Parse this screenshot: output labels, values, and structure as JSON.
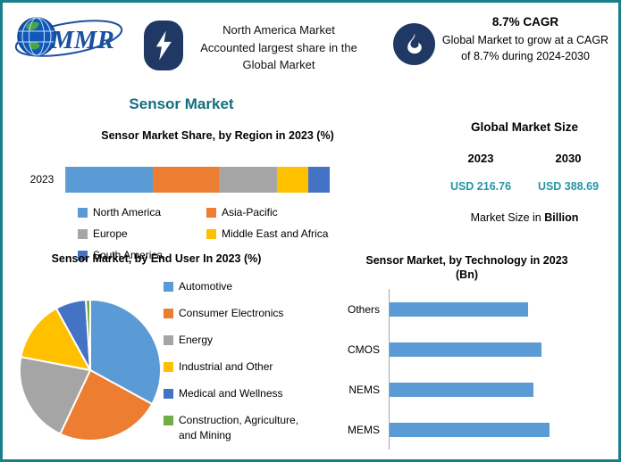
{
  "theme": {
    "frame_border": "#1A7F8A",
    "title_color": "#136F7E",
    "value_color": "#2596A6",
    "icon_badge_color": "#1F3864",
    "palette": [
      "#5B9BD5",
      "#ED7D31",
      "#A5A5A5",
      "#FFC000",
      "#4472C4",
      "#70AD47"
    ]
  },
  "header": {
    "logo_text": "MMR",
    "highlight": {
      "lines": [
        "North America Market",
        "Accounted largest share in the",
        "Global Market"
      ]
    },
    "cagr": {
      "title": "8.7% CAGR",
      "text": "Global Market to grow at a CAGR of 8.7% during 2024-2030"
    }
  },
  "title": "Sensor Market",
  "market_size": {
    "title": "Global Market Size",
    "years": [
      "2023",
      "2030"
    ],
    "values": [
      "USD 216.76",
      "USD 388.69"
    ],
    "note_prefix": "Market Size in ",
    "note_bold": "Billion"
  },
  "chart_data": [
    {
      "type": "bar",
      "variant": "stacked-horizontal",
      "title": "Sensor Market Share, by Region in 2023 (%)",
      "categories": [
        "2023"
      ],
      "series": [
        {
          "name": "North America",
          "color": "#5B9BD5",
          "values": [
            33
          ]
        },
        {
          "name": "Asia-Pacific",
          "color": "#ED7D31",
          "values": [
            25
          ]
        },
        {
          "name": "Europe",
          "color": "#A5A5A5",
          "values": [
            22
          ]
        },
        {
          "name": "Middle East and Africa",
          "color": "#FFC000",
          "values": [
            12
          ]
        },
        {
          "name": "South America",
          "color": "#4472C4",
          "values": [
            8
          ]
        }
      ],
      "xlim": [
        0,
        100
      ],
      "legend_position": "bottom"
    },
    {
      "type": "pie",
      "title": "Sensor Market, by End User In 2023 (%)",
      "labels": [
        "Automotive",
        "Consumer Electronics",
        "Energy",
        "Industrial and Other",
        "Medical and Wellness",
        "Construction, Agriculture, and Mining"
      ],
      "values": [
        33,
        24,
        21,
        14,
        7,
        1
      ],
      "colors": [
        "#5B9BD5",
        "#ED7D31",
        "#A5A5A5",
        "#FFC000",
        "#4472C4",
        "#70AD47"
      ],
      "legend_position": "right"
    },
    {
      "type": "bar",
      "variant": "horizontal",
      "title": "Sensor Market, by Technology in 2023 (Bn)",
      "title_lines": [
        "Sensor Market, by Technology in 2023",
        "(Bn)"
      ],
      "categories": [
        "Others",
        "CMOS",
        "NEMS",
        "MEMS"
      ],
      "values": [
        52,
        57,
        54,
        60
      ],
      "bar_color": "#5B9BD5",
      "xlim": [
        0,
        85
      ],
      "legend_position": "none"
    }
  ]
}
